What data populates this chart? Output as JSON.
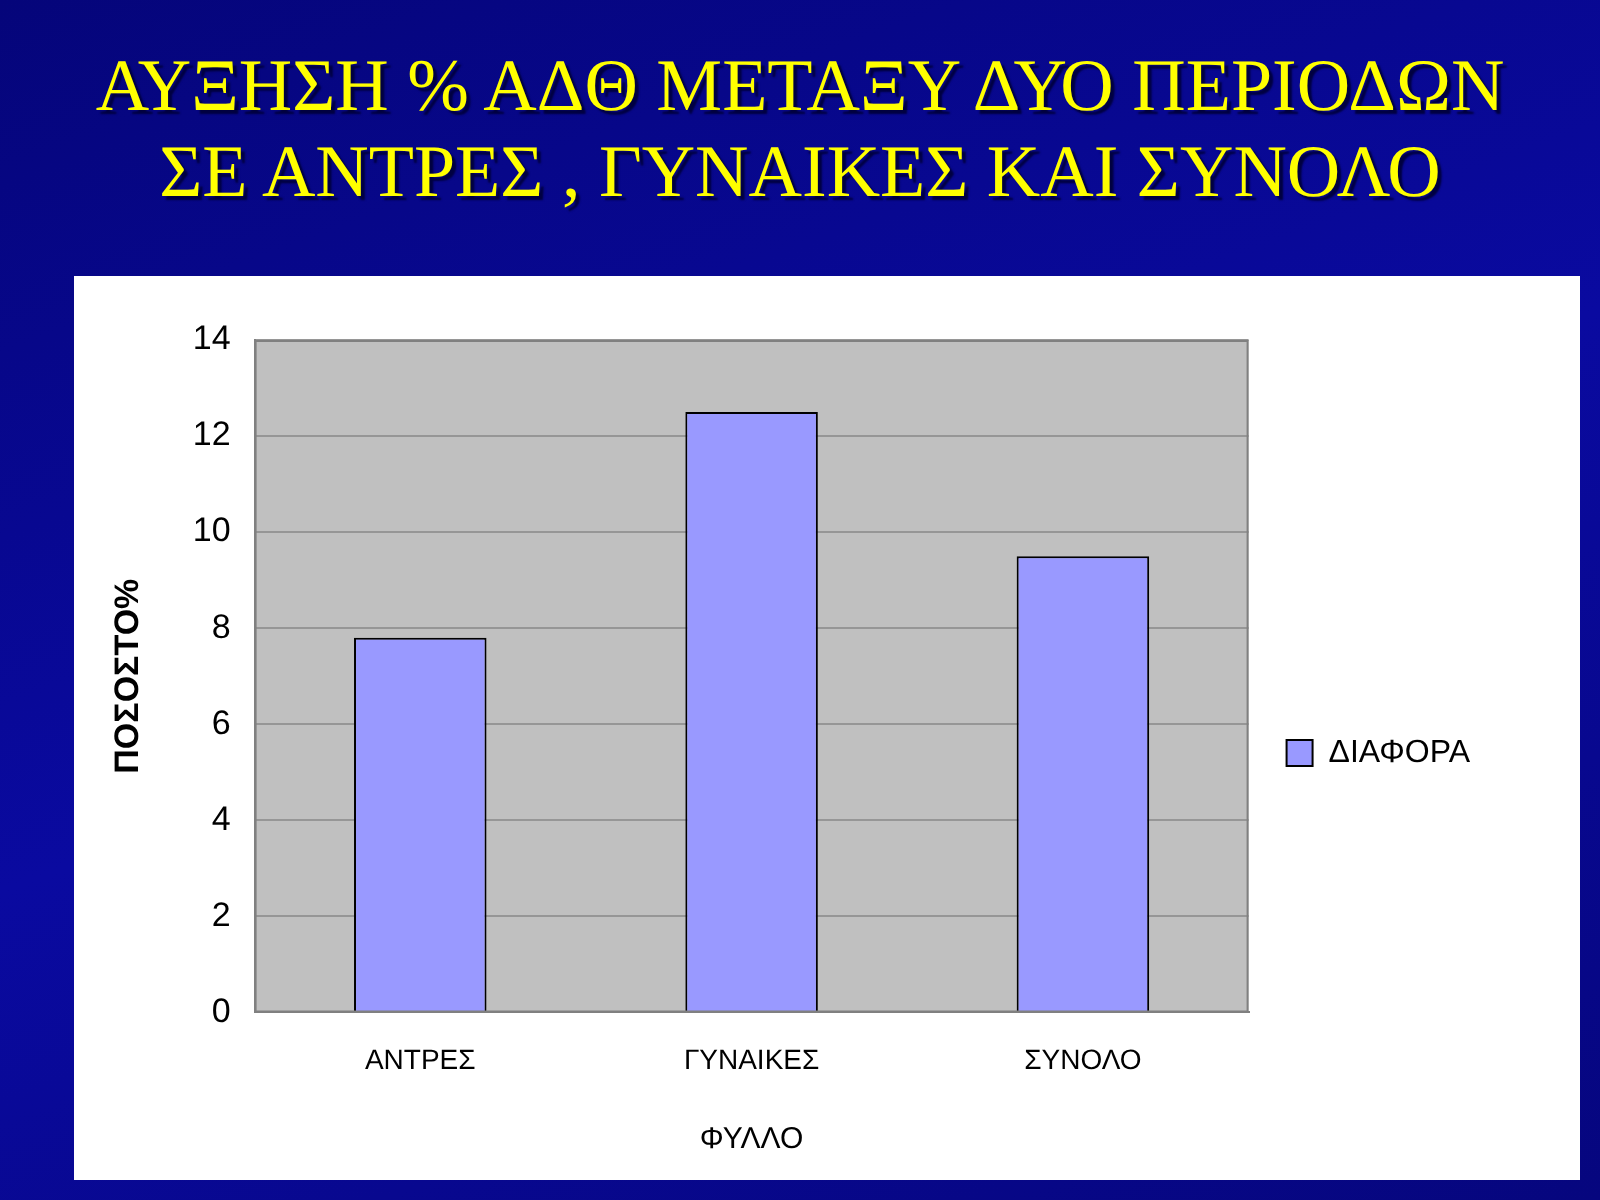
{
  "chart_data": {
    "type": "bar",
    "title": "ΑΥΞΗΣΗ % ΑΔΘ ΜΕΤΑΞΥ ΔΥΟ ΠΕΡΙΟΔΩΝ ΣΕ ΑΝΤΡΕΣ , ΓΥΝΑΙΚΕΣ ΚΑΙ ΣΥΝΟΛΟ",
    "xlabel": "ΦΥΛΛΟ",
    "ylabel": "ΠΟΣΟΣΤΟ%",
    "categories": [
      "ΑΝΤΡΕΣ",
      "ΓΥΝΑΙΚΕΣ",
      "ΣΥΝΟΛΟ"
    ],
    "series": [
      {
        "name": "ΔΙΑΦΟΡΑ",
        "color": "#9999ff",
        "values": [
          7.8,
          12.5,
          9.5
        ]
      }
    ],
    "ylim": [
      0,
      14
    ],
    "yticks": [
      0,
      2,
      4,
      6,
      8,
      10,
      12,
      14
    ],
    "grid": "y",
    "legend": "right"
  }
}
